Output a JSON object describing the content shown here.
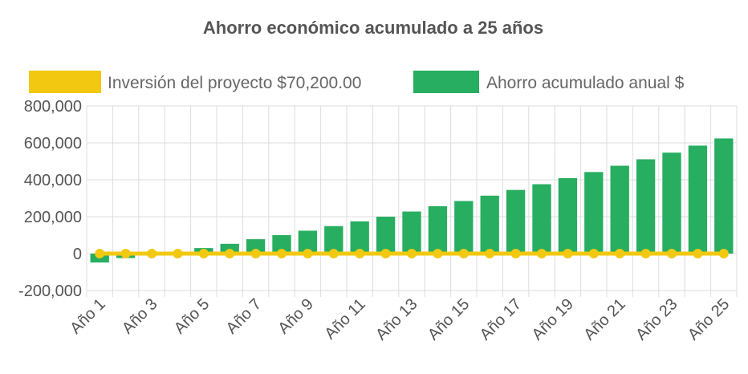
{
  "chart_data": {
    "type": "bar",
    "title": "Ahorro económico acumulado a 25 años",
    "xlabel": "",
    "ylabel": "",
    "ylim": [
      -200000,
      800000
    ],
    "yticks": [
      800000,
      600000,
      400000,
      200000,
      0,
      -200000
    ],
    "ytick_labels": [
      "800,000",
      "600,000",
      "400,000",
      "200,000",
      "0",
      "-200,000"
    ],
    "grid": true,
    "legend_position": "top",
    "categories": [
      "Año 1",
      "Año 2",
      "Año 3",
      "Año 4",
      "Año 5",
      "Año 6",
      "Año 7",
      "Año 8",
      "Año 9",
      "Año 10",
      "Año 11",
      "Año 12",
      "Año 13",
      "Año 14",
      "Año 15",
      "Año 16",
      "Año 17",
      "Año 18",
      "Año 19",
      "Año 20",
      "Año 21",
      "Año 22",
      "Año 23",
      "Año 24",
      "Año 25"
    ],
    "xtick_labels": [
      "Año 1",
      "Año 3",
      "Año 5",
      "Año 7",
      "Año 9",
      "Año 11",
      "Año 13",
      "Año 15",
      "Año 17",
      "Año 19",
      "Año 21",
      "Año 23",
      "Año 25"
    ],
    "series": [
      {
        "name": "Inversión del proyecto $70,200.00",
        "type": "line",
        "color": "#f2c811",
        "values": [
          0,
          0,
          0,
          0,
          0,
          0,
          0,
          0,
          0,
          0,
          0,
          0,
          0,
          0,
          0,
          0,
          0,
          0,
          0,
          0,
          0,
          0,
          0,
          0,
          0
        ]
      },
      {
        "name": "Ahorro acumulado anual $",
        "type": "bar",
        "color": "#27ae60",
        "values": [
          -48000,
          -24000,
          2000,
          8000,
          30000,
          53000,
          78000,
          100000,
          124000,
          149000,
          175000,
          200000,
          228000,
          257000,
          285000,
          314000,
          345000,
          376000,
          409000,
          442000,
          476000,
          511000,
          547000,
          585000,
          624000
        ]
      }
    ]
  }
}
